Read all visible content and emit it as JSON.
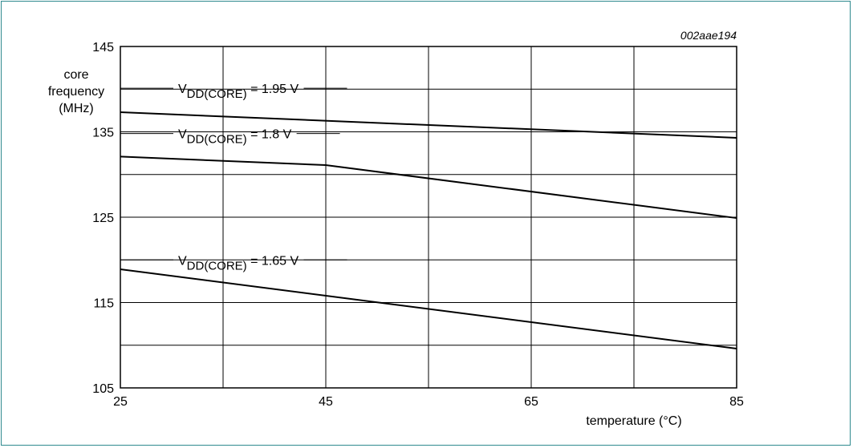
{
  "chart_data": {
    "type": "line",
    "figure_id": "002aae194",
    "xlabel": "temperature  (°C)",
    "ylabel": [
      "core",
      "frequency",
      "(MHz)"
    ],
    "xlim": [
      25,
      85
    ],
    "ylim": [
      105,
      145
    ],
    "xticks": [
      25,
      45,
      65,
      85
    ],
    "yticks": [
      105,
      115,
      125,
      135,
      145
    ],
    "grid": true,
    "series": [
      {
        "name": "1.95 V",
        "x": [
          25,
          85
        ],
        "y": [
          137.3,
          134.3
        ]
      },
      {
        "name": "1.8 V",
        "x": [
          25,
          45,
          85
        ],
        "y": [
          132.1,
          131.1,
          124.9
        ]
      },
      {
        "name": "1.65 V",
        "x": [
          25,
          85
        ],
        "y": [
          118.9,
          109.6
        ]
      }
    ],
    "annotations": [
      {
        "prefix": "V",
        "sub": "DD(CORE)",
        "suffix": " = 1.95 V",
        "x": 25,
        "y": 140.1
      },
      {
        "prefix": "V",
        "sub": "DD(CORE)",
        "suffix": " = 1.8 V",
        "x": 25,
        "y": 134.8
      },
      {
        "prefix": "V",
        "sub": "DD(CORE)",
        "suffix": " = 1.65 V",
        "x": 25,
        "y": 120.0
      }
    ]
  }
}
